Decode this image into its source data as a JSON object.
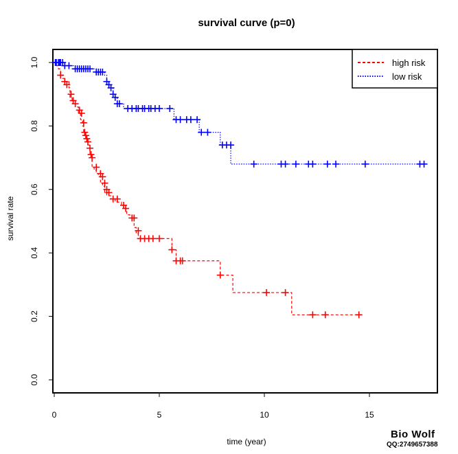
{
  "chart_data": {
    "type": "line",
    "title": "survival curve (p=0)",
    "xlabel": "time (year)",
    "ylabel": "survival rate",
    "xlim": [
      0,
      17.5
    ],
    "ylim": [
      0,
      1.04
    ],
    "xticks": [
      0,
      5,
      10,
      15
    ],
    "xtick_labels": [
      "0",
      "5",
      "10",
      "15"
    ],
    "yticks": [
      0.0,
      0.2,
      0.4,
      0.6,
      0.8,
      1.0
    ],
    "ytick_labels": [
      "0.0",
      "0.2",
      "0.4",
      "0.6",
      "0.8",
      "1.0"
    ],
    "legend_position": "top-right",
    "series": [
      {
        "name": "high risk",
        "color": "#ff0000",
        "line_style": "dashed",
        "steps": [
          [
            0,
            1.0
          ],
          [
            0.1,
            0.99
          ],
          [
            0.2,
            0.98
          ],
          [
            0.3,
            0.96
          ],
          [
            0.4,
            0.95
          ],
          [
            0.5,
            0.94
          ],
          [
            0.7,
            0.92
          ],
          [
            0.75,
            0.89
          ],
          [
            0.85,
            0.88
          ],
          [
            1.0,
            0.86
          ],
          [
            1.15,
            0.84
          ],
          [
            1.25,
            0.82
          ],
          [
            1.35,
            0.8
          ],
          [
            1.4,
            0.78
          ],
          [
            1.45,
            0.77
          ],
          [
            1.55,
            0.76
          ],
          [
            1.6,
            0.74
          ],
          [
            1.7,
            0.71
          ],
          [
            1.75,
            0.7
          ],
          [
            1.8,
            0.67
          ],
          [
            1.9,
            0.66
          ],
          [
            2.0,
            0.65
          ],
          [
            2.1,
            0.64
          ],
          [
            2.2,
            0.62
          ],
          [
            2.3,
            0.61
          ],
          [
            2.4,
            0.59
          ],
          [
            2.5,
            0.58
          ],
          [
            2.7,
            0.57
          ],
          [
            2.9,
            0.56
          ],
          [
            3.2,
            0.55
          ],
          [
            3.3,
            0.54
          ],
          [
            3.45,
            0.52
          ],
          [
            3.6,
            0.51
          ],
          [
            3.8,
            0.48
          ],
          [
            3.9,
            0.46
          ],
          [
            4.0,
            0.445
          ],
          [
            5.6,
            0.41
          ],
          [
            5.8,
            0.375
          ],
          [
            7.9,
            0.33
          ],
          [
            8.5,
            0.275
          ],
          [
            11.3,
            0.205
          ],
          [
            14.5,
            0.205
          ]
        ],
        "censor_times": [
          0.3,
          0.5,
          0.6,
          0.8,
          0.9,
          1.0,
          1.2,
          1.3,
          1.4,
          1.45,
          1.5,
          1.55,
          1.6,
          1.7,
          1.75,
          1.8,
          2.0,
          2.2,
          2.3,
          2.4,
          2.5,
          2.6,
          2.8,
          3.0,
          3.3,
          3.4,
          3.7,
          3.8,
          4.0,
          4.1,
          4.3,
          4.5,
          4.7,
          5.0,
          5.6,
          5.8,
          6.0,
          6.1,
          7.9,
          10.1,
          11.0,
          12.3,
          12.9,
          14.5
        ],
        "censor_values": [
          0.96,
          0.94,
          0.93,
          0.9,
          0.88,
          0.87,
          0.85,
          0.84,
          0.81,
          0.78,
          0.77,
          0.76,
          0.75,
          0.73,
          0.71,
          0.7,
          0.67,
          0.65,
          0.64,
          0.62,
          0.6,
          0.59,
          0.57,
          0.57,
          0.55,
          0.54,
          0.51,
          0.51,
          0.47,
          0.445,
          0.445,
          0.445,
          0.445,
          0.445,
          0.41,
          0.375,
          0.375,
          0.375,
          0.33,
          0.275,
          0.275,
          0.205,
          0.205,
          0.205
        ]
      },
      {
        "name": "low risk",
        "color": "#0000ff",
        "line_style": "dotted",
        "steps": [
          [
            0,
            1.0
          ],
          [
            0.4,
            0.99
          ],
          [
            1.0,
            0.98
          ],
          [
            2.0,
            0.97
          ],
          [
            2.4,
            0.96
          ],
          [
            2.5,
            0.94
          ],
          [
            2.6,
            0.93
          ],
          [
            2.7,
            0.92
          ],
          [
            2.8,
            0.9
          ],
          [
            2.9,
            0.89
          ],
          [
            3.0,
            0.87
          ],
          [
            3.3,
            0.855
          ],
          [
            5.7,
            0.82
          ],
          [
            6.9,
            0.78
          ],
          [
            7.9,
            0.74
          ],
          [
            8.4,
            0.68
          ],
          [
            17.5,
            0.68
          ]
        ],
        "censor_times": [
          0.05,
          0.1,
          0.2,
          0.25,
          0.3,
          0.4,
          0.5,
          0.7,
          1.0,
          1.1,
          1.2,
          1.3,
          1.4,
          1.5,
          1.6,
          1.7,
          2.0,
          2.1,
          2.2,
          2.3,
          2.5,
          2.6,
          2.7,
          2.8,
          2.9,
          3.0,
          3.1,
          3.5,
          3.7,
          3.9,
          4.0,
          4.2,
          4.3,
          4.5,
          4.6,
          4.8,
          5.0,
          5.5,
          5.8,
          6.0,
          6.3,
          6.5,
          6.8,
          7.0,
          7.3,
          8.0,
          8.2,
          8.4,
          9.5,
          10.8,
          11.0,
          11.5,
          12.1,
          12.3,
          13.0,
          13.4,
          14.8,
          17.4,
          17.6
        ],
        "censor_values": [
          1.0,
          1.0,
          1.0,
          1.0,
          1.0,
          1.0,
          0.99,
          0.99,
          0.98,
          0.98,
          0.98,
          0.98,
          0.98,
          0.98,
          0.98,
          0.98,
          0.97,
          0.97,
          0.97,
          0.97,
          0.94,
          0.93,
          0.92,
          0.9,
          0.89,
          0.87,
          0.87,
          0.855,
          0.855,
          0.855,
          0.855,
          0.855,
          0.855,
          0.855,
          0.855,
          0.855,
          0.855,
          0.855,
          0.82,
          0.82,
          0.82,
          0.82,
          0.82,
          0.78,
          0.78,
          0.74,
          0.74,
          0.74,
          0.68,
          0.68,
          0.68,
          0.68,
          0.68,
          0.68,
          0.68,
          0.68,
          0.68,
          0.68,
          0.68
        ]
      }
    ]
  },
  "watermark": {
    "line1": "Bio Wolf",
    "line2": "QQ:2749657388"
  }
}
